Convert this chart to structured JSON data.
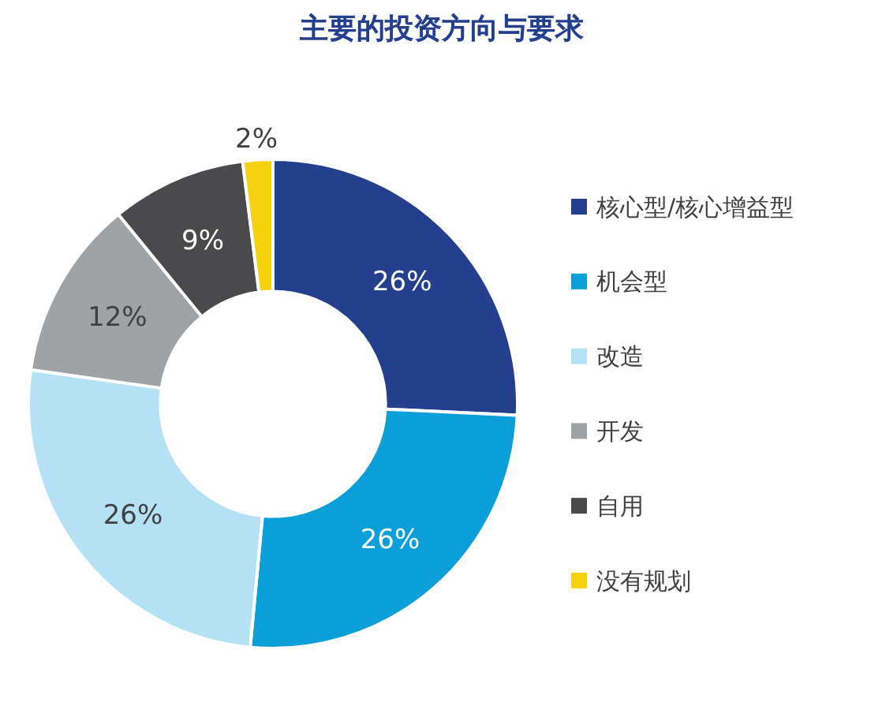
{
  "chart_data": {
    "type": "donut",
    "title": "主要的投资方向与要求",
    "categories": [
      "核心型/核心增益型",
      "机会型",
      "改造",
      "开发",
      "自用",
      "没有规划"
    ],
    "values": [
      26,
      26,
      26,
      12,
      9,
      2
    ],
    "colors": [
      "#253f8f",
      "#0b9fda",
      "#b5e1f4",
      "#a0a3a5",
      "#4a4a4c",
      "#f6d10e"
    ],
    "value_labels": [
      "26%",
      "26%",
      "26%",
      "12%",
      "9%",
      "2%"
    ],
    "legend": "right"
  }
}
